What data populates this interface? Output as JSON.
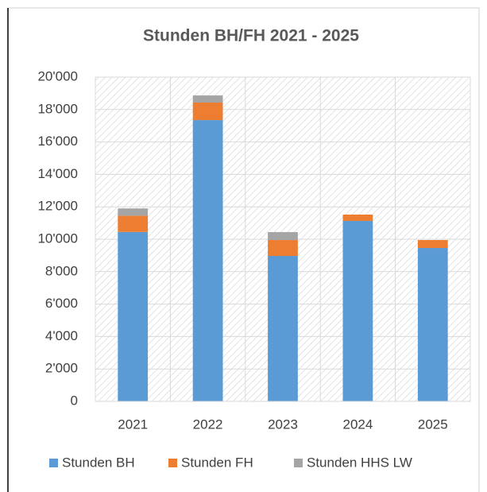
{
  "chart_data": {
    "type": "stacked_bar",
    "title": "Stunden BH/FH 2021 - 2025",
    "categories": [
      "2021",
      "2022",
      "2023",
      "2024",
      "2025"
    ],
    "series": [
      {
        "name": "Stunden BH",
        "color": "#5b9bd5",
        "values": [
          10450,
          17350,
          8970,
          11130,
          9460
        ]
      },
      {
        "name": "Stunden FH",
        "color": "#ed7d31",
        "values": [
          1000,
          1080,
          980,
          390,
          490
        ]
      },
      {
        "name": "Stunden HHS LW",
        "color": "#a5a5a5",
        "values": [
          450,
          440,
          490,
          0,
          0
        ]
      }
    ],
    "ylim": [
      0,
      20000
    ],
    "yticks": [
      0,
      {
        "value": 2000,
        "label": "2'000"
      },
      {
        "value": 4000,
        "label": "4'000"
      },
      {
        "value": 6000,
        "label": "6'000"
      },
      {
        "value": 8000,
        "label": "8'000"
      },
      {
        "value": 10000,
        "label": "10'000"
      },
      {
        "value": 12000,
        "label": "12'000"
      },
      {
        "value": 14000,
        "label": "14'000"
      },
      {
        "value": 16000,
        "label": "16'000"
      },
      {
        "value": 18000,
        "label": "18'000"
      },
      {
        "value": 20000,
        "label": "20'000"
      }
    ],
    "grid": true,
    "legend": "bottom"
  }
}
